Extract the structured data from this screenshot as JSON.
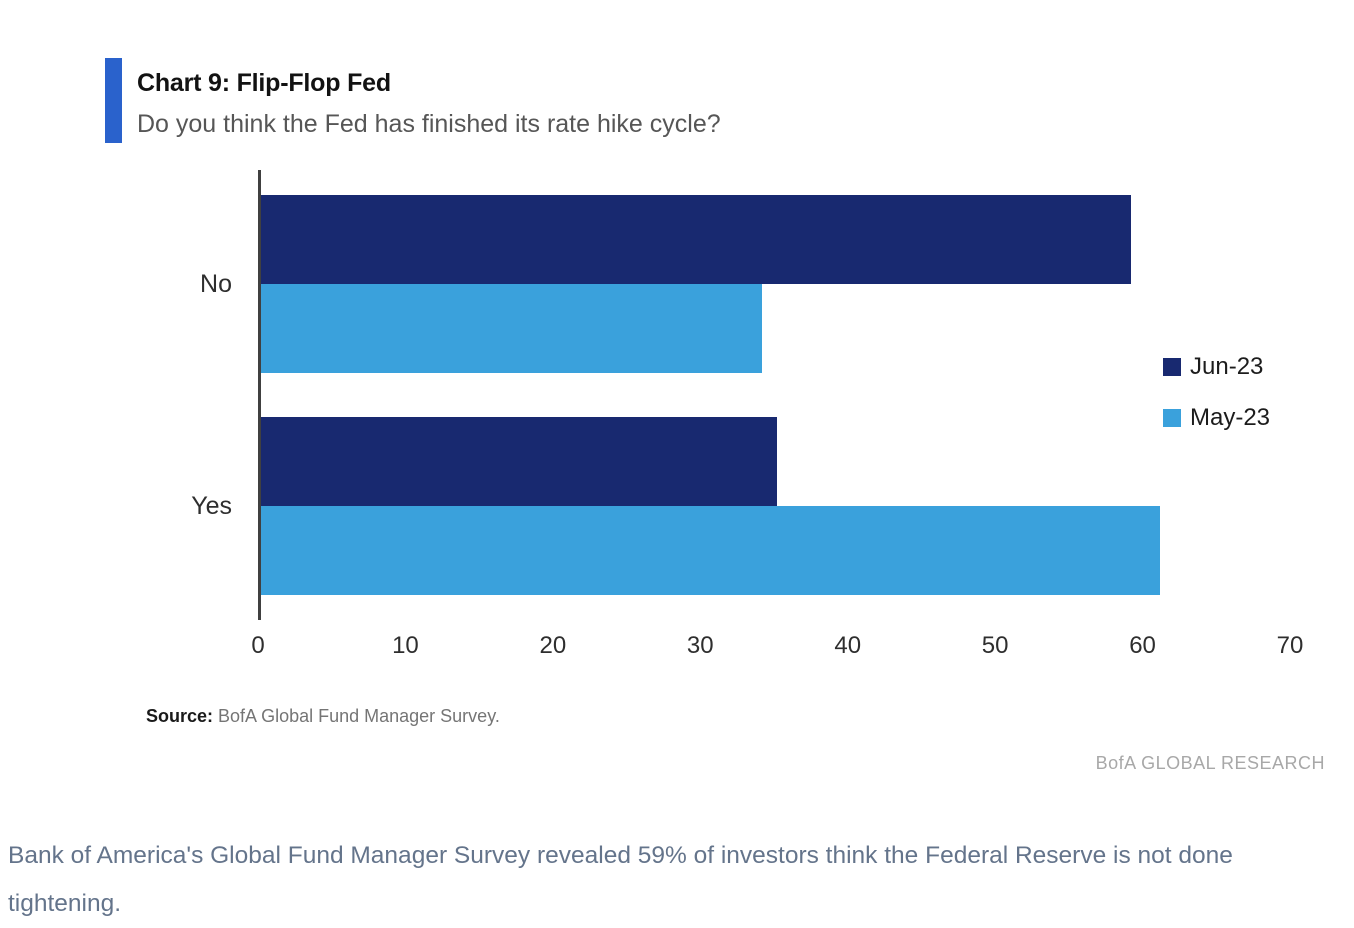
{
  "header": {
    "title": "Chart 9: Flip-Flop Fed",
    "subtitle": "Do you think the Fed has finished its rate hike cycle?"
  },
  "chart_data": {
    "type": "bar",
    "orientation": "horizontal",
    "title": "Chart 9: Flip-Flop Fed",
    "subtitle": "Do you think the Fed has finished its rate hike cycle?",
    "categories": [
      "No",
      "Yes"
    ],
    "series": [
      {
        "name": "Jun-23",
        "color": "#182970",
        "values": [
          59,
          35
        ]
      },
      {
        "name": "May-23",
        "color": "#3aa1dc",
        "values": [
          34,
          61
        ]
      }
    ],
    "xlabel": "",
    "ylabel": "",
    "xlim": [
      0,
      70
    ],
    "xticks": [
      0,
      10,
      20,
      30,
      40,
      50,
      60,
      70
    ],
    "grid": false,
    "legend_position": "right"
  },
  "footer": {
    "source_label": "Source:",
    "source_text": " BofA Global Fund Manager Survey.",
    "brand": "BofA GLOBAL RESEARCH"
  },
  "caption": {
    "text": "Bank of America's Global Fund Manager Survey revealed 59% of investors think the Federal Reserve is not done tightening."
  },
  "colors": {
    "accent_bar": "#2a62cc",
    "navy": "#182970",
    "light_blue": "#3aa1dc",
    "axis": "#404040",
    "caption_text": "#64748b"
  }
}
